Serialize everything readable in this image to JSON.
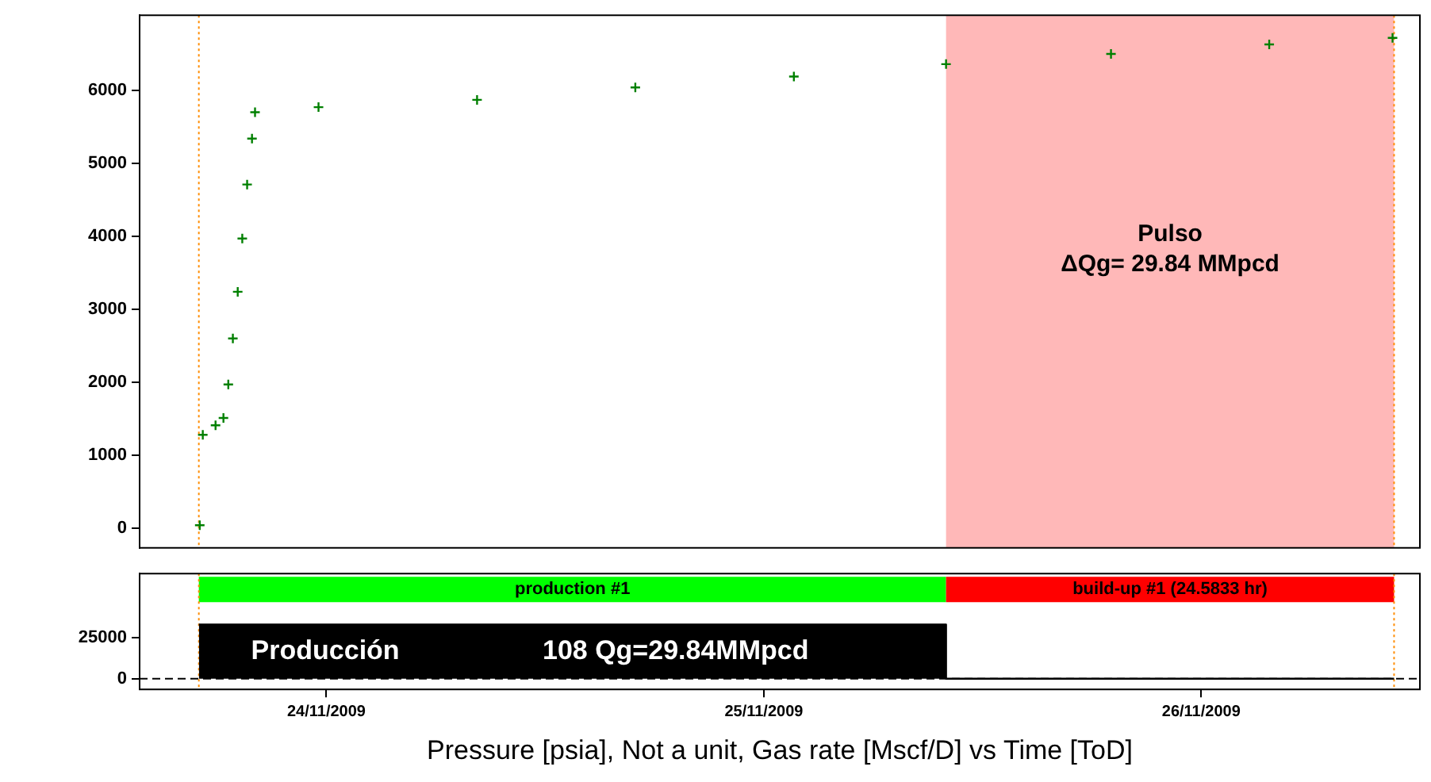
{
  "chart_data": [
    {
      "type": "scatter",
      "marker": "cross",
      "color": "#008000",
      "grid": false,
      "legend": false,
      "tick_labels": "y",
      "x": [
        "2009-11-23T17:03",
        "2009-11-23T17:13",
        "2009-11-23T17:55",
        "2009-11-23T18:21",
        "2009-11-23T18:37",
        "2009-11-23T18:52",
        "2009-11-23T19:08",
        "2009-11-23T19:23",
        "2009-11-23T19:39",
        "2009-11-23T19:55",
        "2009-11-23T20:05",
        "2009-11-23T23:34",
        "2009-11-24T08:16",
        "2009-11-24T16:57",
        "2009-11-25T01:39",
        "2009-11-25T10:00",
        "2009-11-25T19:03",
        "2009-11-26T03:44",
        "2009-11-26T10:30"
      ],
      "values": [
        40,
        1280,
        1410,
        1510,
        1970,
        2600,
        3240,
        3970,
        4710,
        5340,
        5700,
        5770,
        5870,
        6040,
        6190,
        6360,
        6500,
        6630,
        6720
      ],
      "xlim": [
        "2009-11-23T13:45",
        "2009-11-26T12:00"
      ],
      "ylim": [
        -270,
        7030
      ],
      "yticks": [
        0,
        1000,
        2000,
        3000,
        4000,
        5000,
        6000
      ],
      "bands": [
        {
          "axis": "x",
          "from": "2009-11-25T10:00",
          "to": "2009-11-26T10:35",
          "label": "Pulso\nΔQg= 29.84 MMpcd",
          "color": "#ffb8b8"
        }
      ],
      "ref_lines": [
        {
          "axis": "x",
          "value": "2009-11-23T17:00",
          "color": "#ff8c00",
          "line_style": "dotted"
        },
        {
          "axis": "x",
          "value": "2009-11-26T10:35",
          "color": "#ff8c00",
          "line_style": "dotted"
        }
      ]
    },
    {
      "type": "area",
      "color": "#000000",
      "grid": false,
      "legend": false,
      "xlabel": "Pressure [psia], Not a unit, Gas rate [Mscf/D] vs Time [ToD]",
      "x": [
        "2009-11-23T17:00",
        "2009-11-25T10:00",
        "2009-11-25T10:00",
        "2009-11-26T10:35"
      ],
      "values": [
        33000,
        33000,
        0,
        0
      ],
      "xlim": [
        "2009-11-23T13:45",
        "2009-11-26T12:00"
      ],
      "xticks": [
        {
          "value": "2009-11-24",
          "label": "24/11/2009"
        },
        {
          "value": "2009-11-25",
          "label": "25/11/2009"
        },
        {
          "value": "2009-11-26",
          "label": "26/11/2009"
        }
      ],
      "ylim": [
        -6500,
        64000
      ],
      "yticks": [
        0,
        25000
      ],
      "annotations": [
        "Producción",
        "108 Qg=29.84MMpcd"
      ],
      "bands": [
        {
          "axis": "x",
          "from": "2009-11-23T17:00",
          "to": "2009-11-25T10:00",
          "label": "production #1",
          "color": "#00ff00"
        },
        {
          "axis": "x",
          "from": "2009-11-25T10:00",
          "to": "2009-11-26T10:35",
          "label": "build-up #1 (24.5833 hr)",
          "color": "#ff0000"
        }
      ],
      "ref_lines": [
        {
          "axis": "x",
          "value": "2009-11-23T17:00",
          "color": "#ff8c00",
          "line_style": "dotted"
        },
        {
          "axis": "x",
          "value": "2009-11-26T10:35",
          "color": "#ff8c00",
          "line_style": "dotted"
        },
        {
          "axis": "y",
          "value": 0,
          "color": "#000000",
          "line_style": "dashed"
        }
      ]
    }
  ]
}
